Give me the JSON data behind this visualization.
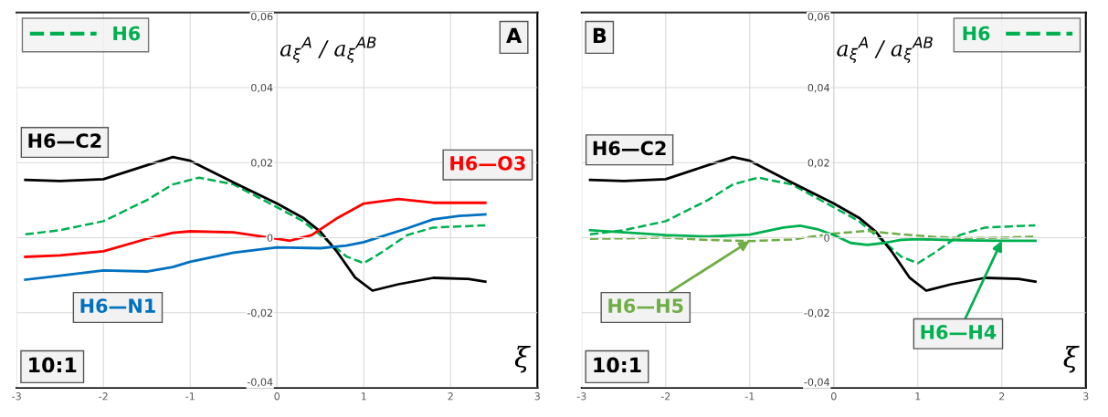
{
  "chart_data": [
    {
      "type": "line",
      "ylabel": "a$_{ξ}$$^{A}$ / a$_{ξ}$$^{AB}$",
      "xlabel": "ξ",
      "annotations": [
        "A",
        "10:1"
      ],
      "xlim": [
        -3,
        3
      ],
      "xticks": [
        -3,
        -2,
        -1,
        0,
        1,
        2,
        3
      ],
      "ylim": [
        -0.04,
        0.06
      ],
      "yticks": [
        {
          "value": -0.04,
          "label": "-0,04"
        },
        {
          "value": -0.02,
          "label": "-0,02"
        },
        {
          "value": 0,
          "label": "0"
        },
        {
          "value": 0.02,
          "label": "0,02"
        },
        {
          "value": 0.04,
          "label": "0,04"
        },
        {
          "value": 0.06,
          "label": "0,06"
        }
      ],
      "grid": true,
      "legend": "top left",
      "series": [
        {
          "name": "H6",
          "color": "#00b050",
          "line_style": "dashed",
          "x": [
            -2.9,
            -2.5,
            -2,
            -1.5,
            -1.2,
            -0.9,
            -0.5,
            0,
            0.3,
            0.6,
            0.8,
            1.0,
            1.2,
            1.5,
            1.8,
            2.4
          ],
          "values": [
            0.0009,
            0.002,
            0.0044,
            0.01,
            0.0142,
            0.016,
            0.0142,
            0.0081,
            0.0044,
            -0.0012,
            -0.005,
            -0.0068,
            -0.004,
            0.0007,
            0.0027,
            0.0033
          ]
        },
        {
          "name": "H6—C2",
          "color": "#000000",
          "x": [
            -2.9,
            -2.5,
            -2,
            -1.5,
            -1.2,
            -1,
            -0.5,
            0,
            0.3,
            0.5,
            0.7,
            0.9,
            1.1,
            1.4,
            1.8,
            2.2,
            2.4
          ],
          "values": [
            0.0154,
            0.0151,
            0.0156,
            0.0193,
            0.0215,
            0.0205,
            0.0147,
            0.0091,
            0.0053,
            0.0016,
            -0.004,
            -0.0106,
            -0.0141,
            -0.0124,
            -0.0107,
            -0.011,
            -0.0117
          ]
        },
        {
          "name": "H6—O3",
          "color": "#ff0000",
          "x": [
            -2.9,
            -2.5,
            -2,
            -1.5,
            -1.2,
            -1,
            -0.5,
            0,
            0.15,
            0.4,
            0.7,
            1.0,
            1.4,
            1.8,
            2.4
          ],
          "values": [
            -0.0051,
            -0.0047,
            -0.0036,
            -0.0003,
            0.0013,
            0.0017,
            0.0014,
            -0.0003,
            -0.0008,
            0.0007,
            0.0053,
            0.0091,
            0.0103,
            0.0093,
            0.0093
          ]
        },
        {
          "name": "H6—N1",
          "color": "#0070c0",
          "x": [
            -2.9,
            -2.5,
            -2,
            -1.5,
            -1.2,
            -1,
            -0.5,
            0,
            0.5,
            0.8,
            1.0,
            1.5,
            1.8,
            2.1,
            2.4
          ],
          "values": [
            -0.0112,
            -0.0101,
            -0.0087,
            -0.009,
            -0.0078,
            -0.0064,
            -0.004,
            -0.0026,
            -0.0028,
            -0.0021,
            -0.0012,
            0.0025,
            0.0049,
            0.0058,
            0.0062
          ]
        }
      ]
    },
    {
      "type": "line",
      "ylabel": "a$_{ξ}$$^{A}$ / a$_{ξ}$$^{AB}$",
      "xlabel": "ξ",
      "annotations": [
        "B",
        "10:1"
      ],
      "xlim": [
        -3,
        3
      ],
      "xticks": [
        -3,
        -2,
        -1,
        0,
        1,
        2,
        3
      ],
      "ylim": [
        -0.04,
        0.06
      ],
      "yticks": [
        {
          "value": -0.04,
          "label": "-0,04"
        },
        {
          "value": -0.02,
          "label": "-0,02"
        },
        {
          "value": 0,
          "label": "0"
        },
        {
          "value": 0.02,
          "label": "0,02"
        },
        {
          "value": 0.04,
          "label": "0,04"
        },
        {
          "value": 0.06,
          "label": "0,06"
        }
      ],
      "grid": true,
      "legend": "top right",
      "series": [
        {
          "name": "H6",
          "color": "#00b050",
          "line_style": "dashed",
          "x": [
            -2.9,
            -2.5,
            -2,
            -1.5,
            -1.2,
            -0.9,
            -0.5,
            0,
            0.3,
            0.6,
            0.8,
            1.0,
            1.2,
            1.5,
            1.8,
            2.4
          ],
          "values": [
            0.0009,
            0.002,
            0.0044,
            0.01,
            0.0142,
            0.016,
            0.0142,
            0.0081,
            0.0044,
            -0.0012,
            -0.005,
            -0.0068,
            -0.004,
            0.0007,
            0.0027,
            0.0033
          ]
        },
        {
          "name": "H6—C2",
          "color": "#000000",
          "x": [
            -2.9,
            -2.5,
            -2,
            -1.5,
            -1.2,
            -1,
            -0.5,
            0,
            0.3,
            0.5,
            0.7,
            0.9,
            1.1,
            1.4,
            1.8,
            2.2,
            2.4
          ],
          "values": [
            0.0154,
            0.0151,
            0.0156,
            0.0193,
            0.0215,
            0.0205,
            0.0147,
            0.0091,
            0.0053,
            0.0016,
            -0.004,
            -0.0106,
            -0.0141,
            -0.0124,
            -0.0107,
            -0.011,
            -0.0117
          ]
        },
        {
          "name": "H6—H5",
          "color": "#70ad47",
          "line_style": "dashed",
          "x": [
            -2.9,
            -2,
            -1.5,
            -1,
            -0.5,
            0,
            0.4,
            0.8,
            1.2,
            1.6,
            2.0,
            2.4
          ],
          "values": [
            -0.0003,
            0,
            -0.0006,
            -0.0009,
            -0.0005,
            0.0011,
            0.0018,
            0.0009,
            0.0002,
            -0.0001,
            0,
            0.0003
          ]
        },
        {
          "name": "H6—H4",
          "color": "#00b050",
          "x": [
            -2.9,
            -2.5,
            -2,
            -1.5,
            -1,
            -0.6,
            -0.4,
            -0.2,
            0,
            0.2,
            0.4,
            0.6,
            0.8,
            1.0,
            1.5,
            2.0,
            2.4
          ],
          "values": [
            0.002,
            0.0014,
            0.0007,
            0.0003,
            0.0008,
            0.0027,
            0.0032,
            0.0023,
            0.0007,
            -0.0014,
            -0.0019,
            -0.0014,
            -0.0006,
            -0.0004,
            -0.0007,
            -0.0008,
            -0.0008
          ]
        }
      ]
    }
  ]
}
